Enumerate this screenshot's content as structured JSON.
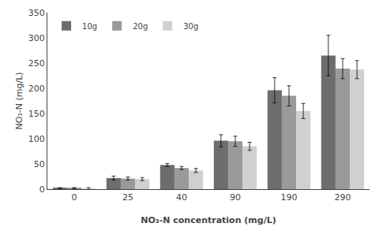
{
  "chart_data": {
    "type": "bar",
    "categories": [
      "0",
      "25",
      "40",
      "90",
      "190",
      "290"
    ],
    "series": [
      {
        "name": "10g",
        "color": "#6d6d6d",
        "values": [
          2,
          22,
          48,
          96,
          196,
          265
        ],
        "errors": [
          1,
          4,
          3,
          12,
          25,
          40
        ]
      },
      {
        "name": "20g",
        "color": "#9a9a9a",
        "values": [
          2,
          21,
          42,
          95,
          185,
          239
        ],
        "errors": [
          1,
          3,
          3,
          10,
          20,
          20
        ]
      },
      {
        "name": "30g",
        "color": "#d0d0d0",
        "values": [
          1,
          20,
          37,
          85,
          155,
          237
        ],
        "errors": [
          2,
          3,
          4,
          8,
          15,
          18
        ]
      }
    ],
    "xlabel": "NO₃-N concentration (mg/L)",
    "ylabel": "NO₃-N (mg/L)",
    "ylim": [
      0,
      350
    ],
    "yticks": [
      0,
      50,
      100,
      150,
      200,
      250,
      300,
      350
    ],
    "grid": false,
    "legend": "upper left"
  }
}
